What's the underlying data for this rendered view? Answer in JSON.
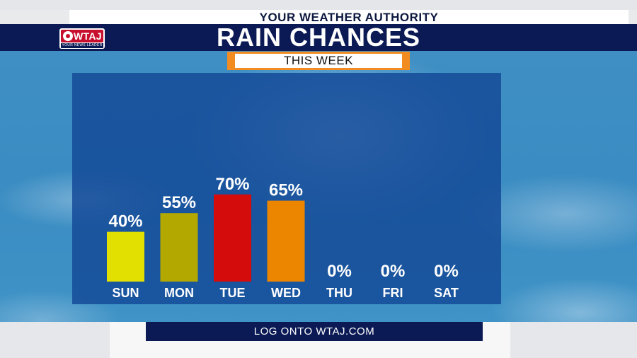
{
  "header": {
    "tagline": "YOUR WEATHER AUTHORITY",
    "title": "RAIN CHANCES",
    "subtitle": "THIS WEEK"
  },
  "logo": {
    "name": "WTAJ",
    "sub": "YOUR NEWS LEADER",
    "icon": "cbs-eye-icon"
  },
  "footer": {
    "text": "LOG ONTO WTAJ.COM"
  },
  "colors": {
    "navy": "#0b1a55",
    "accent": "#f28c20",
    "panel": "#124896"
  },
  "chart_data": {
    "type": "bar",
    "title": "RAIN CHANCES",
    "subtitle": "THIS WEEK",
    "categories": [
      "SUN",
      "MON",
      "TUE",
      "WED",
      "THU",
      "FRI",
      "SAT"
    ],
    "values": [
      40,
      55,
      70,
      65,
      0,
      0,
      0
    ],
    "value_labels": [
      "40%",
      "55%",
      "70%",
      "65%",
      "0%",
      "0%",
      "0%"
    ],
    "colors": [
      "#e2e000",
      "#b3a800",
      "#d40c0c",
      "#ec8600",
      "#ec8600",
      "#ec8600",
      "#ec8600"
    ],
    "unit": "%",
    "ylim": [
      0,
      100
    ],
    "grid": false,
    "legend": "none"
  }
}
